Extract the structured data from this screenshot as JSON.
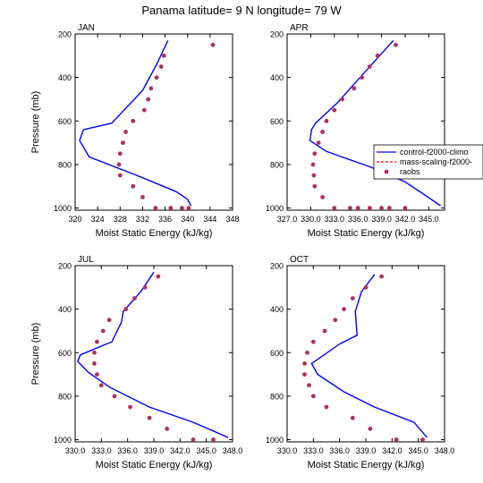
{
  "figure": {
    "title": "Panama  latitude= 9 N longitude= 79 W"
  },
  "legend": {
    "entries": [
      {
        "label": "control-f2000-climo",
        "color": "#0000ff",
        "style": "solid"
      },
      {
        "label": "mass-scaling-f2000-",
        "color": "#ff0000",
        "style": "dashed"
      },
      {
        "label": "raobs",
        "color": "#b03060",
        "style": "dots"
      }
    ]
  },
  "chart_data": [
    {
      "type": "line",
      "title": "JAN",
      "xlabel": "Moist Static Energy (kJ/kg)",
      "ylabel": "Pressure (mb)",
      "xlim": [
        320,
        348
      ],
      "ylim": [
        1010,
        200
      ],
      "xticks": [
        "320",
        "324",
        "328",
        "332",
        "336",
        "340",
        "344",
        "348"
      ],
      "yticks": [
        "200",
        "400",
        "600",
        "800",
        "1000"
      ],
      "grid": false,
      "series": [
        {
          "name": "control-f2000-climo",
          "color": "#0000ff",
          "x": [
            336.5,
            334.5,
            332.0,
            326.5,
            321.5,
            320.8,
            322.5,
            331.0,
            338.0,
            340.0,
            340.6
          ],
          "y": [
            230,
            340,
            460,
            610,
            640,
            690,
            765,
            850,
            925,
            960,
            990
          ]
        },
        {
          "name": "raobs",
          "color": "#b03060",
          "x": [
            344.5,
            335.8,
            335.3,
            334.5,
            333.5,
            333.0,
            332.3,
            330.3,
            329.0,
            328.5,
            328.0,
            327.8,
            328.0,
            330.3,
            332.0,
            334.3,
            337.0,
            339.0,
            340.2
          ],
          "y": [
            250,
            300,
            350,
            400,
            450,
            500,
            550,
            600,
            650,
            700,
            750,
            800,
            850,
            900,
            950,
            1000,
            1000,
            1000,
            1000
          ]
        }
      ]
    },
    {
      "type": "line",
      "title": "APR",
      "xlabel": "Moist Static Energy (kJ/kg)",
      "ylabel": "",
      "xlim": [
        327.0,
        347.0
      ],
      "ylim": [
        1010,
        200
      ],
      "xticks": [
        "327.0",
        "330.0",
        "333.0",
        "336.0",
        "339.0",
        "342.0",
        "345.0"
      ],
      "yticks": [
        "200",
        "400",
        "600",
        "800",
        "1000"
      ],
      "grid": false,
      "series": [
        {
          "name": "control-f2000-climo",
          "color": "#0000ff",
          "x": [
            340.5,
            337.0,
            333.3,
            330.6,
            330.1,
            329.9,
            332.0,
            337.5,
            342.0,
            344.5,
            346.5
          ],
          "y": [
            230,
            370,
            520,
            610,
            640,
            690,
            740,
            810,
            880,
            940,
            990
          ]
        },
        {
          "name": "raobs",
          "color": "#b03060",
          "x": [
            340.8,
            338.5,
            337.5,
            336.5,
            335.5,
            334.0,
            333.0,
            332.0,
            331.5,
            331.0,
            330.5,
            330.3,
            330.4,
            330.5,
            331.5,
            333.0,
            335.0,
            336.0,
            337.5,
            339.0,
            340.0,
            342.0
          ],
          "y": [
            250,
            300,
            350,
            400,
            450,
            500,
            550,
            600,
            650,
            700,
            750,
            800,
            850,
            900,
            950,
            1000,
            1000,
            1000,
            1000,
            1000,
            1000,
            1000
          ]
        }
      ]
    },
    {
      "type": "line",
      "title": "JUL",
      "xlabel": "Moist Static Energy (kJ/kg)",
      "ylabel": "Pressure (mb)",
      "xlim": [
        330.0,
        348.0
      ],
      "ylim": [
        1010,
        200
      ],
      "xticks": [
        "330.0",
        "333.0",
        "336.0",
        "339.0",
        "342.0",
        "345.0",
        "348.0"
      ],
      "yticks": [
        "200",
        "400",
        "600",
        "800",
        "1000"
      ],
      "grid": false,
      "series": [
        {
          "name": "control-f2000-climo",
          "color": "#0000ff",
          "x": [
            339.0,
            337.5,
            335.5,
            335.3,
            334.2,
            330.6,
            330.3,
            331.5,
            334.0,
            338.5,
            343.5,
            347.5
          ],
          "y": [
            230,
            320,
            410,
            460,
            550,
            610,
            640,
            690,
            760,
            850,
            920,
            990
          ]
        },
        {
          "name": "raobs",
          "color": "#b03060",
          "x": [
            339.5,
            338.0,
            336.8,
            335.8,
            333.9,
            333.2,
            332.5,
            332.2,
            332.2,
            332.5,
            333.0,
            334.5,
            336.3,
            338.5,
            340.5,
            343.5,
            345.8
          ],
          "y": [
            250,
            300,
            350,
            400,
            450,
            500,
            550,
            600,
            650,
            700,
            750,
            800,
            850,
            900,
            950,
            1000,
            1000
          ]
        }
      ]
    },
    {
      "type": "line",
      "title": "OCT",
      "xlabel": "Moist Static Energy (kJ/kg)",
      "ylabel": "",
      "xlim": [
        330.0,
        348.0
      ],
      "ylim": [
        1010,
        200
      ],
      "xticks": [
        "330.0",
        "333.0",
        "336.0",
        "339.0",
        "342.0",
        "345.0",
        "348.0"
      ],
      "yticks": [
        "200",
        "400",
        "600",
        "800",
        "1000"
      ],
      "grid": false,
      "series": [
        {
          "name": "control-f2000-climo",
          "color": "#0000ff",
          "x": [
            340.0,
            338.5,
            337.8,
            338.0,
            336.0,
            332.8,
            333.5,
            336.5,
            340.0,
            344.5,
            346.0
          ],
          "y": [
            240,
            320,
            410,
            520,
            560,
            650,
            700,
            780,
            850,
            920,
            990
          ]
        },
        {
          "name": "raobs",
          "color": "#b03060",
          "x": [
            340.8,
            339.0,
            337.5,
            336.5,
            335.5,
            334.3,
            333.0,
            332.3,
            332.0,
            332.0,
            332.5,
            333.0,
            334.5,
            337.5,
            339.5,
            342.5,
            345.5
          ],
          "y": [
            250,
            300,
            350,
            400,
            450,
            500,
            550,
            600,
            650,
            700,
            750,
            800,
            850,
            900,
            950,
            1000,
            1000
          ]
        }
      ]
    }
  ]
}
